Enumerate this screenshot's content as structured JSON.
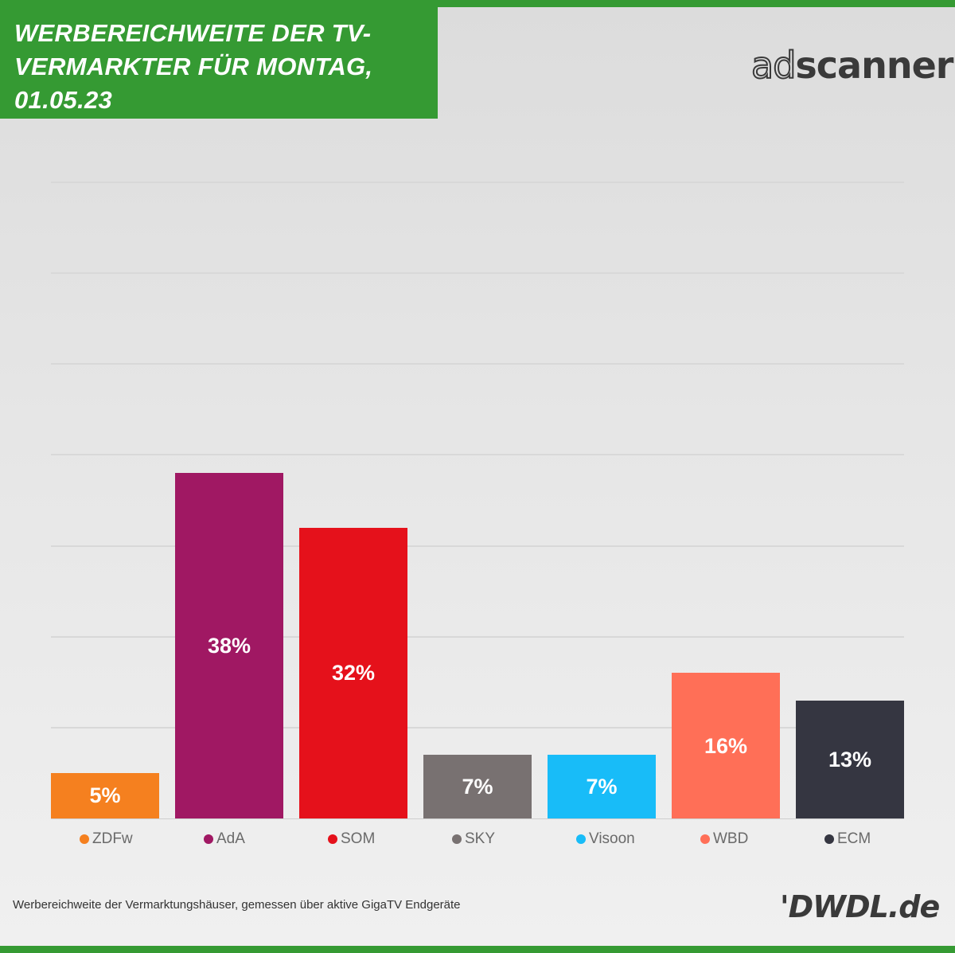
{
  "title": "WERBEREICHWEITE DER TV-VERMARKTER FÜR MONTAG, 01.05.23",
  "title_lines": [
    "WERBEREICHWEITE DER TV-",
    "VERMARKTER FÜR MONTAG,",
    "01.05.23"
  ],
  "brand_logo": {
    "part1": "ad",
    "part2": "scanner"
  },
  "source_logo": "'DWDL.de",
  "footnote": "Werbereichweite der Vermarktungshäuser, gemessen über aktive GigaTV Endgeräte",
  "colors": {
    "accent": "#359a33",
    "background": "#e4e4e4"
  },
  "chart_data": {
    "type": "bar",
    "categories": [
      "ZDFw",
      "AdA",
      "SOM",
      "SKY",
      "Visoon",
      "WBD",
      "ECM"
    ],
    "values": [
      5,
      38,
      32,
      7,
      7,
      16,
      13
    ],
    "labels": [
      "5%",
      "38%",
      "32%",
      "7%",
      "7%",
      "16%",
      "13%"
    ],
    "colors": [
      "#f5801f",
      "#a01863",
      "#e5111b",
      "#787171",
      "#18bcf8",
      "#ff6f57",
      "#353641"
    ],
    "unit": "%",
    "ylim": [
      0,
      70
    ],
    "grid": true,
    "legend": "bottom",
    "title": "WERBEREICHWEITE DER TV-VERMARKTER FÜR MONTAG, 01.05.23"
  }
}
